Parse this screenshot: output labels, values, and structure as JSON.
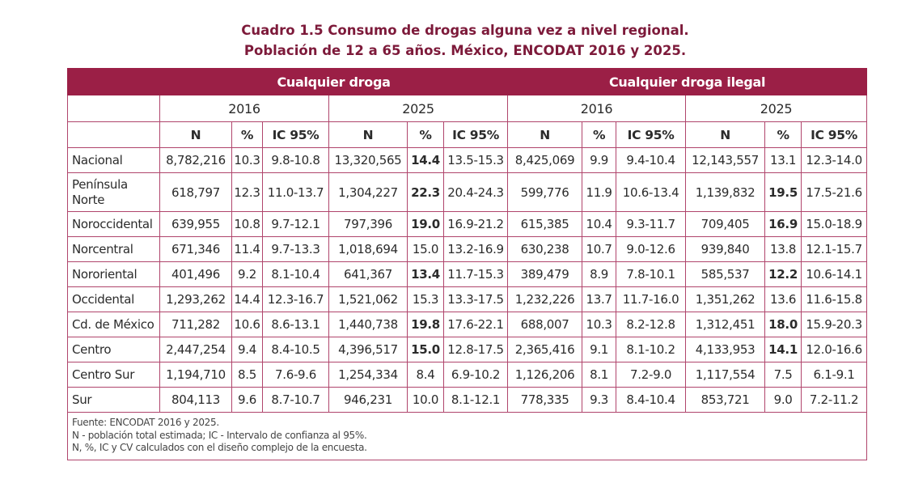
{
  "title": {
    "line1": "Cuadro 1.5 Consumo de drogas alguna vez a nivel regional.",
    "line2": "Población de 12 a 65 años. México, ENCODAT 2016 y 2025."
  },
  "colors": {
    "accent": "#9b1f46",
    "title": "#7d1a3a",
    "border": "#b0456c"
  },
  "groups": [
    "Cualquier droga",
    "Cualquier droga ilegal"
  ],
  "years": [
    "2016",
    "2025",
    "2016",
    "2025"
  ],
  "subheaders": [
    "N",
    "%",
    "IC 95%",
    "N",
    "%",
    "IC 95%",
    "N",
    "%",
    "IC 95%",
    "N",
    "%",
    "IC 95%"
  ],
  "rows": [
    {
      "region": "Nacional",
      "c": [
        "8,782,216",
        "10.3",
        "9.8-10.8",
        "13,320,565",
        "14.4",
        "13.5-15.3",
        "8,425,069",
        "9.9",
        "9.4-10.4",
        "12,143,557",
        "13.1",
        "12.3-14.0"
      ],
      "bold": [
        4
      ]
    },
    {
      "region": "Península Norte",
      "c": [
        "618,797",
        "12.3",
        "11.0-13.7",
        "1,304,227",
        "22.3",
        "20.4-24.3",
        "599,776",
        "11.9",
        "10.6-13.4",
        "1,139,832",
        "19.5",
        "17.5-21.6"
      ],
      "bold": [
        4,
        10
      ]
    },
    {
      "region": "Noroccidental",
      "c": [
        "639,955",
        "10.8",
        "9.7-12.1",
        "797,396",
        "19.0",
        "16.9-21.2",
        "615,385",
        "10.4",
        "9.3-11.7",
        "709,405",
        "16.9",
        "15.0-18.9"
      ],
      "bold": [
        4,
        10
      ]
    },
    {
      "region": "Norcentral",
      "c": [
        "671,346",
        "11.4",
        "9.7-13.3",
        "1,018,694",
        "15.0",
        "13.2-16.9",
        "630,238",
        "10.7",
        "9.0-12.6",
        "939,840",
        "13.8",
        "12.1-15.7"
      ],
      "bold": []
    },
    {
      "region": "Nororiental",
      "c": [
        "401,496",
        "9.2",
        "8.1-10.4",
        "641,367",
        "13.4",
        "11.7-15.3",
        "389,479",
        "8.9",
        "7.8-10.1",
        "585,537",
        "12.2",
        "10.6-14.1"
      ],
      "bold": [
        4,
        10
      ]
    },
    {
      "region": "Occidental",
      "c": [
        "1,293,262",
        "14.4",
        "12.3-16.7",
        "1,521,062",
        "15.3",
        "13.3-17.5",
        "1,232,226",
        "13.7",
        "11.7-16.0",
        "1,351,262",
        "13.6",
        "11.6-15.8"
      ],
      "bold": []
    },
    {
      "region": "Cd. de México",
      "c": [
        "711,282",
        "10.6",
        "8.6-13.1",
        "1,440,738",
        "19.8",
        "17.6-22.1",
        "688,007",
        "10.3",
        "8.2-12.8",
        "1,312,451",
        "18.0",
        "15.9-20.3"
      ],
      "bold": [
        4,
        10
      ]
    },
    {
      "region": "Centro",
      "c": [
        "2,447,254",
        "9.4",
        "8.4-10.5",
        "4,396,517",
        "15.0",
        "12.8-17.5",
        "2,365,416",
        "9.1",
        "8.1-10.2",
        "4,133,953",
        "14.1",
        "12.0-16.6"
      ],
      "bold": [
        4,
        10
      ]
    },
    {
      "region": "Centro Sur",
      "c": [
        "1,194,710",
        "8.5",
        "7.6-9.6",
        "1,254,334",
        "8.4",
        "6.9-10.2",
        "1,126,206",
        "8.1",
        "7.2-9.0",
        "1,117,554",
        "7.5",
        "6.1-9.1"
      ],
      "bold": []
    },
    {
      "region": "Sur",
      "c": [
        "804,113",
        "9.6",
        "8.7-10.7",
        "946,231",
        "10.0",
        "8.1-12.1",
        "778,335",
        "9.3",
        "8.4-10.4",
        "853,721",
        "9.0",
        "7.2-11.2"
      ],
      "bold": []
    }
  ],
  "footer": [
    "Fuente: ENCODAT 2016 y 2025.",
    "N - población total estimada; IC - Intervalo de confianza al 95%.",
    "N, %, IC y CV calculados con el diseño complejo de la encuesta."
  ]
}
